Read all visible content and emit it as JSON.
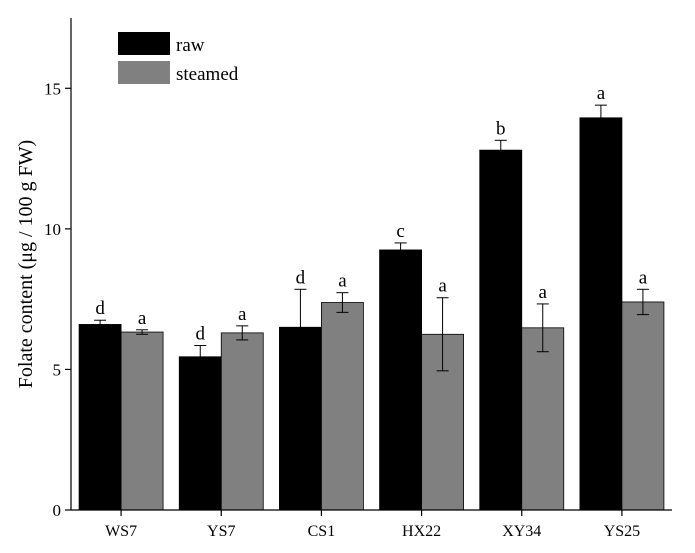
{
  "chart_data": {
    "type": "bar",
    "title": "",
    "xlabel": "",
    "ylabel": "Folate content (μg / 100 g FW)",
    "ylim": [
      0,
      17.5
    ],
    "yticks": [
      0,
      5,
      10,
      15
    ],
    "grid": false,
    "legend_position": "top-left",
    "categories": [
      "WS7",
      "YS7",
      "CS1",
      "HX22",
      "XY34",
      "YS25"
    ],
    "series": [
      {
        "name": "raw",
        "color": "#000000",
        "values": [
          6.6,
          5.45,
          6.5,
          9.25,
          12.8,
          13.95
        ],
        "errors": [
          0.15,
          0.4,
          1.35,
          0.25,
          0.35,
          0.45
        ],
        "labels": [
          "d",
          "d",
          "d",
          "c",
          "b",
          "a"
        ]
      },
      {
        "name": "steamed",
        "color": "#808080",
        "values": [
          6.33,
          6.3,
          7.38,
          6.25,
          6.48,
          7.4
        ],
        "errors": [
          0.08,
          0.25,
          0.35,
          1.3,
          0.85,
          0.45
        ],
        "labels": [
          "a",
          "a",
          "a",
          "a",
          "a",
          "a"
        ]
      }
    ]
  }
}
